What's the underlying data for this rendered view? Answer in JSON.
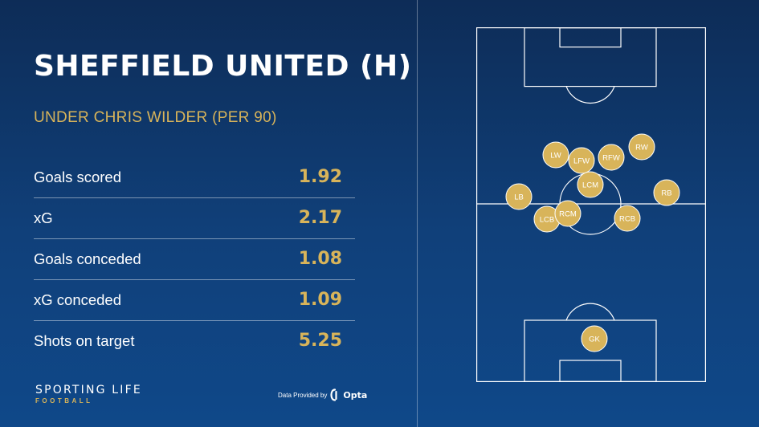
{
  "header": {
    "title": "SHEFFIELD UNITED (H)",
    "subtitle": "UNDER CHRIS WILDER (PER 90)"
  },
  "stats": [
    {
      "label": "Goals scored",
      "value": "1.92"
    },
    {
      "label": "xG",
      "value": "2.17"
    },
    {
      "label": "Goals conceded",
      "value": "1.08"
    },
    {
      "label": "xG conceded",
      "value": "1.09"
    },
    {
      "label": "Shots on target",
      "value": "5.25"
    }
  ],
  "footer": {
    "brand_main": "SPORTING LIFE",
    "brand_sub": "FOOTBALL",
    "provider_text": "Data Provided by",
    "provider_name": "Opta"
  },
  "players": {
    "lw": "LW",
    "lfw": "LFW",
    "rfw": "RFW",
    "rw": "RW",
    "lcm": "LCM",
    "lb": "LB",
    "rb": "RB",
    "lcb": "LCB",
    "rcm": "RCM",
    "rcb": "RCB",
    "gk": "GK"
  },
  "colors": {
    "accent": "#d8b45a",
    "background": "#0f3c73",
    "text": "#ffffff"
  }
}
